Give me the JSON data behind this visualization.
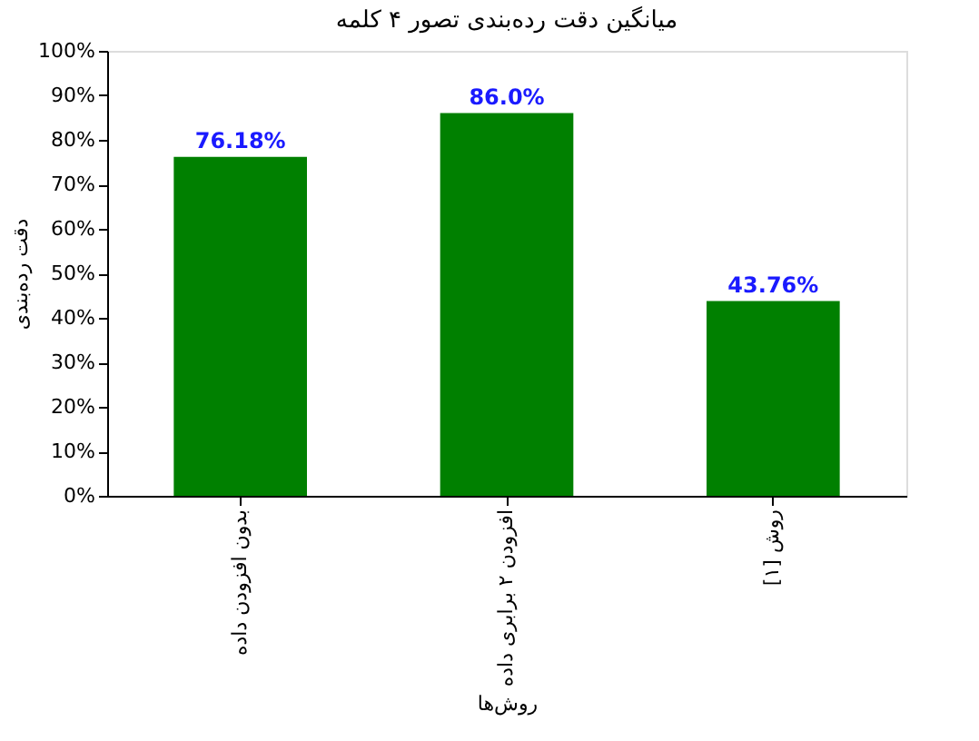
{
  "chart_data": {
    "type": "bar",
    "title": "میانگین دقت رده‌بندی تصور ۴ کلمه",
    "xlabel": "روش‌ها",
    "ylabel": "دقت رده‌بندی",
    "categories": [
      "بدون افزودن داده",
      "افزودن ۲ برابری داده",
      "روش [۱]"
    ],
    "values": [
      76.18,
      86.0,
      43.76
    ],
    "color": "#008000",
    "value_labels": [
      "76.18%",
      "86.0%",
      "43.76%"
    ],
    "ylim": [
      0,
      100
    ],
    "yticks": [
      {
        "value": 0,
        "label": "0%"
      },
      {
        "value": 10,
        "label": "10%"
      },
      {
        "value": 20,
        "label": "20%"
      },
      {
        "value": 30,
        "label": "30%"
      },
      {
        "value": 40,
        "label": "40%"
      },
      {
        "value": 50,
        "label": "50%"
      },
      {
        "value": 60,
        "label": "60%"
      },
      {
        "value": 70,
        "label": "70%"
      },
      {
        "value": 80,
        "label": "80%"
      },
      {
        "value": 90,
        "label": "90%"
      },
      {
        "value": 100,
        "label": "100%"
      }
    ],
    "grid": false
  }
}
